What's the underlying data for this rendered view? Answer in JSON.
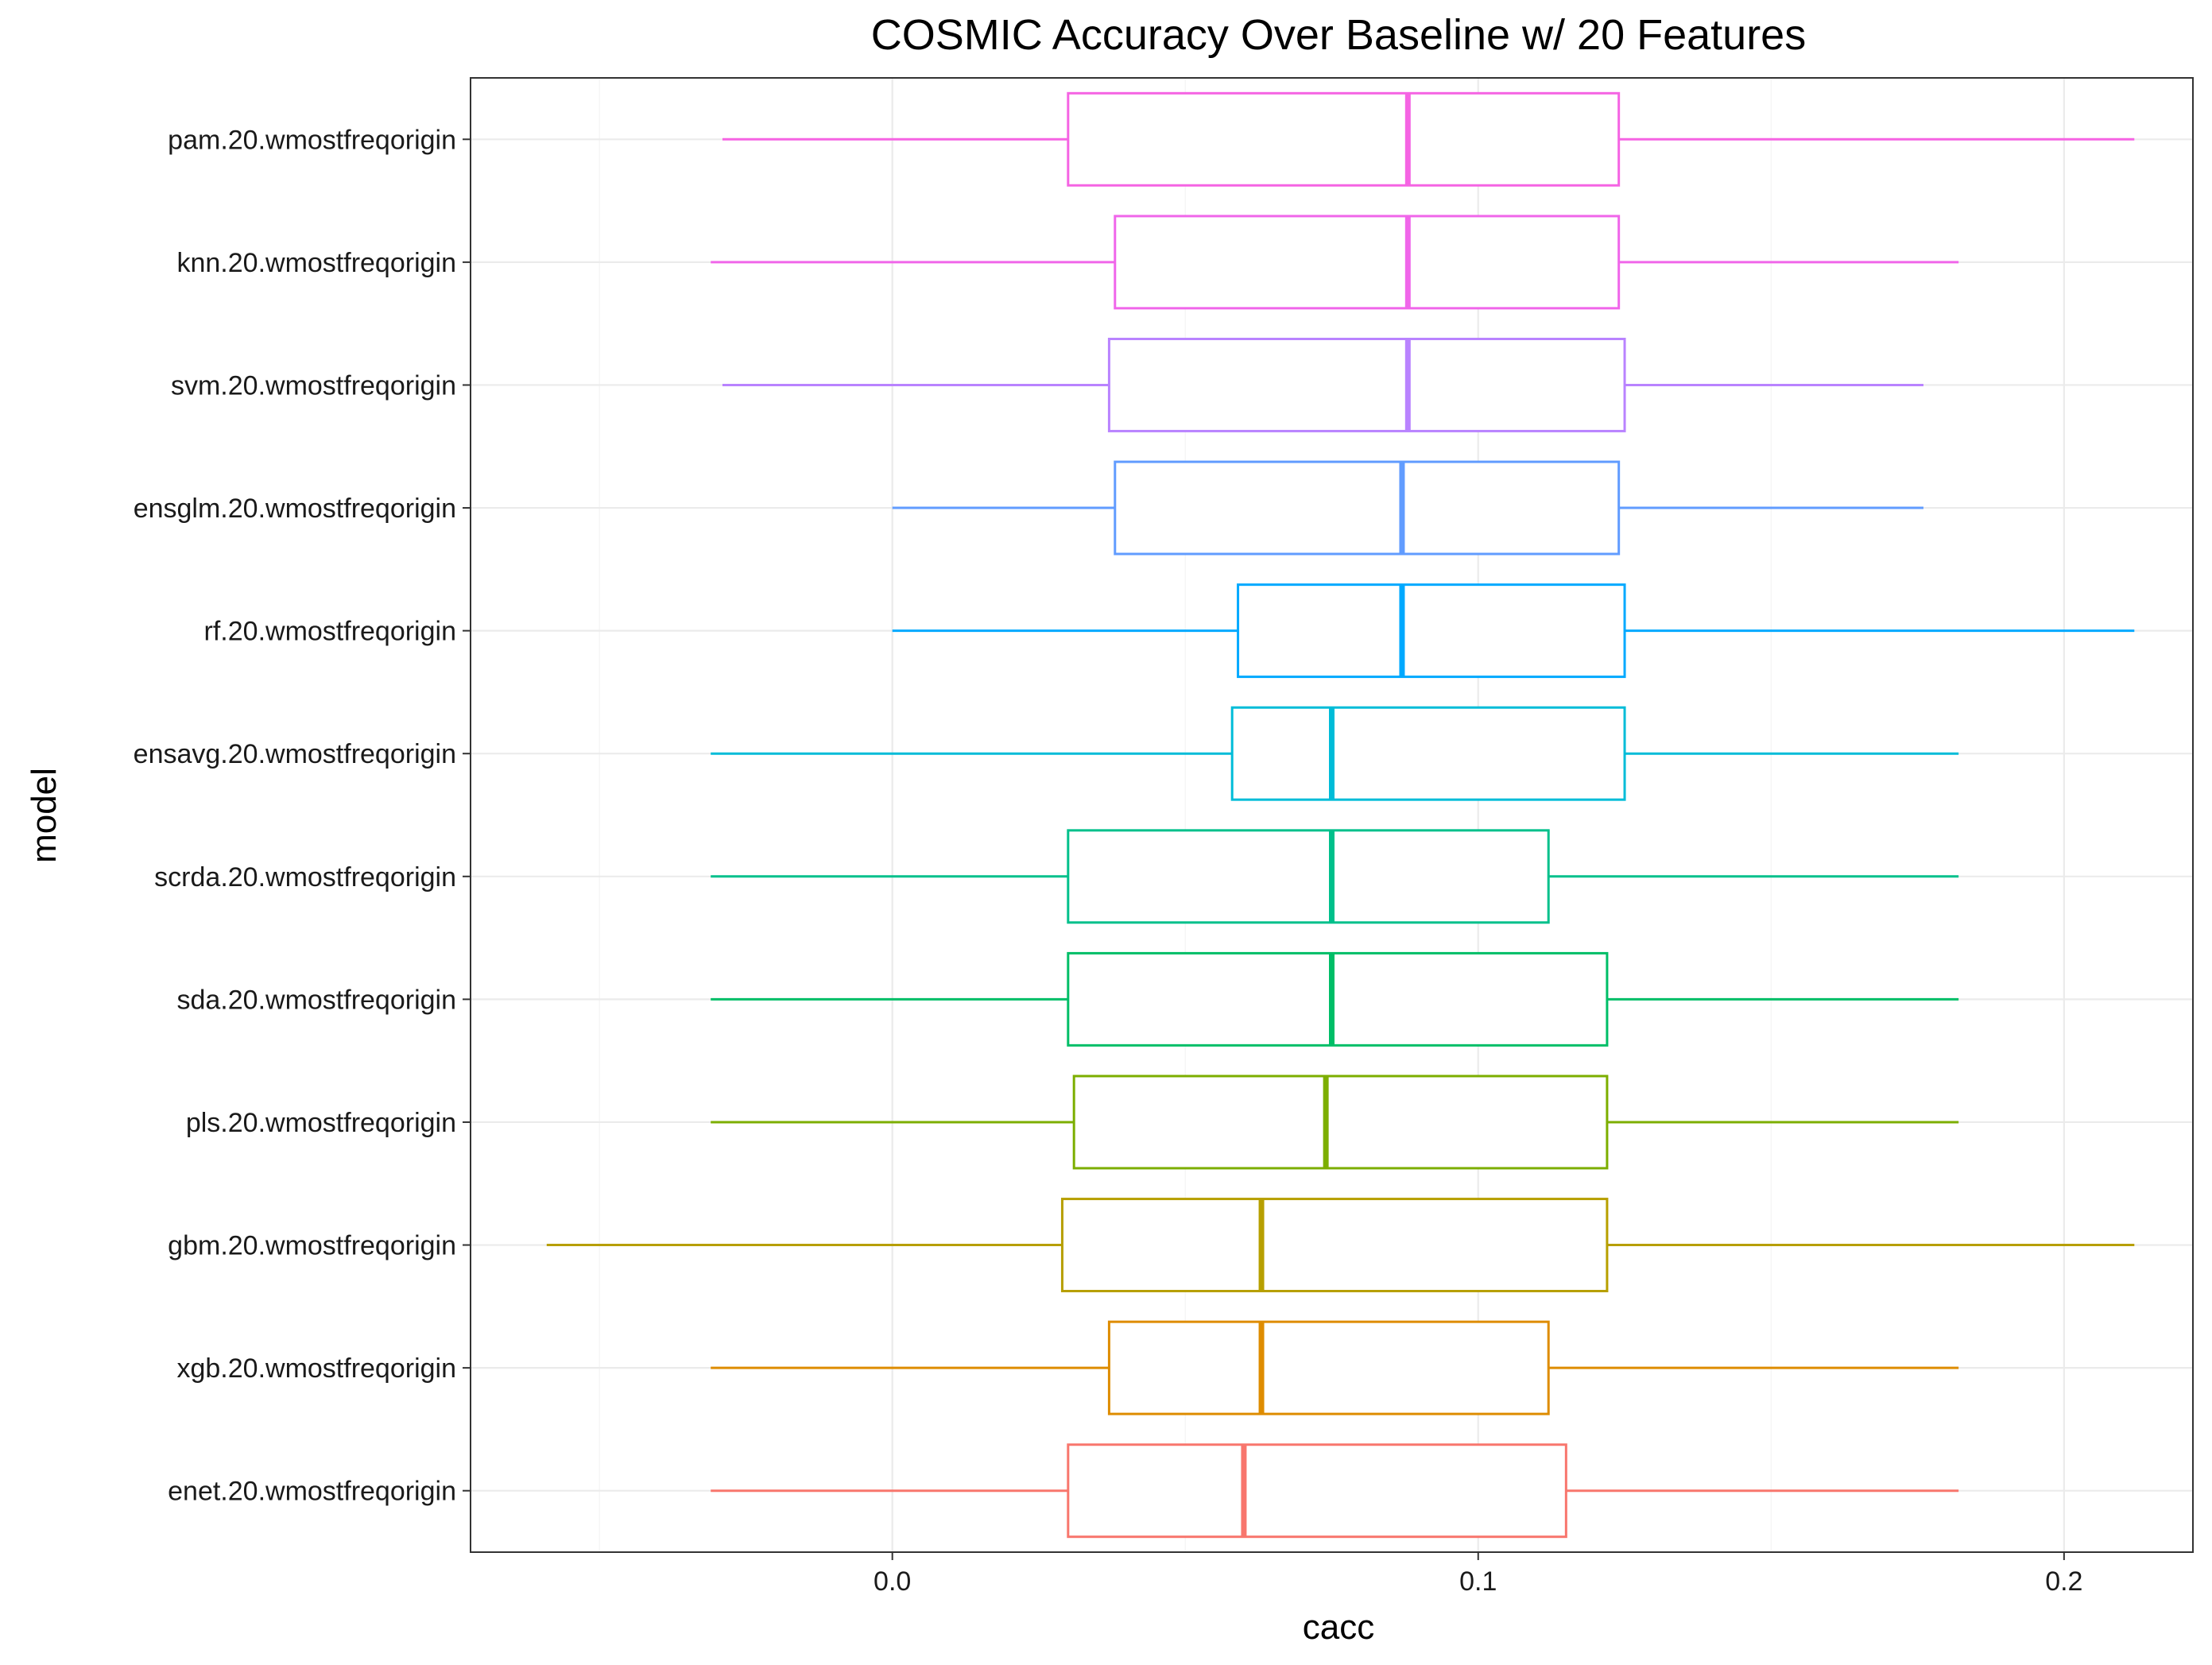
{
  "chart_data": {
    "type": "boxplot",
    "orientation": "horizontal",
    "title": "COSMIC Accuracy Over Baseline w/ 20 Features",
    "xlabel": "cacc",
    "ylabel": "model",
    "xlim": [
      -0.072,
      0.222
    ],
    "xticks": [
      0.0,
      0.1,
      0.2
    ],
    "xtick_labels": [
      "0.0",
      "0.1",
      "0.2"
    ],
    "grid": true,
    "theme": "bw",
    "series": [
      {
        "name": "pam.20.wmostfreqorigin",
        "color": "#F8766D_placeholder",
        "whisker_low": -0.029,
        "q1": 0.03,
        "median": 0.088,
        "q3": 0.124,
        "whisker_high": 0.212
      },
      {
        "name": "knn.20.wmostfreqorigin",
        "color": "",
        "whisker_low": -0.031,
        "q1": 0.038,
        "median": 0.088,
        "q3": 0.124,
        "whisker_high": 0.182
      },
      {
        "name": "svm.20.wmostfreqorigin",
        "color": "",
        "whisker_low": -0.029,
        "q1": 0.037,
        "median": 0.088,
        "q3": 0.125,
        "whisker_high": 0.176
      },
      {
        "name": "ensglm.20.wmostfreqorigin",
        "color": "",
        "whisker_low": 0.0,
        "q1": 0.038,
        "median": 0.087,
        "q3": 0.124,
        "whisker_high": 0.176
      },
      {
        "name": "rf.20.wmostfreqorigin",
        "color": "",
        "whisker_low": 0.0,
        "q1": 0.059,
        "median": 0.087,
        "q3": 0.125,
        "whisker_high": 0.212
      },
      {
        "name": "ensavg.20.wmostfreqorigin",
        "color": "",
        "whisker_low": -0.031,
        "q1": 0.058,
        "median": 0.075,
        "q3": 0.125,
        "whisker_high": 0.182
      },
      {
        "name": "scrda.20.wmostfreqorigin",
        "color": "",
        "whisker_low": -0.031,
        "q1": 0.03,
        "median": 0.075,
        "q3": 0.112,
        "whisker_high": 0.182
      },
      {
        "name": "sda.20.wmostfreqorigin",
        "color": "",
        "whisker_low": -0.031,
        "q1": 0.03,
        "median": 0.075,
        "q3": 0.122,
        "whisker_high": 0.182
      },
      {
        "name": "pls.20.wmostfreqorigin",
        "color": "",
        "whisker_low": -0.031,
        "q1": 0.031,
        "median": 0.074,
        "q3": 0.122,
        "whisker_high": 0.182
      },
      {
        "name": "gbm.20.wmostfreqorigin",
        "color": "",
        "whisker_low": -0.059,
        "q1": 0.029,
        "median": 0.063,
        "q3": 0.122,
        "whisker_high": 0.212
      },
      {
        "name": "xgb.20.wmostfreqorigin",
        "color": "",
        "whisker_low": -0.031,
        "q1": 0.037,
        "median": 0.063,
        "q3": 0.112,
        "whisker_high": 0.182
      },
      {
        "name": "enet.20.wmostfreqorigin",
        "color": "",
        "whisker_low": -0.031,
        "q1": 0.03,
        "median": 0.06,
        "q3": 0.115,
        "whisker_high": 0.182
      }
    ]
  }
}
